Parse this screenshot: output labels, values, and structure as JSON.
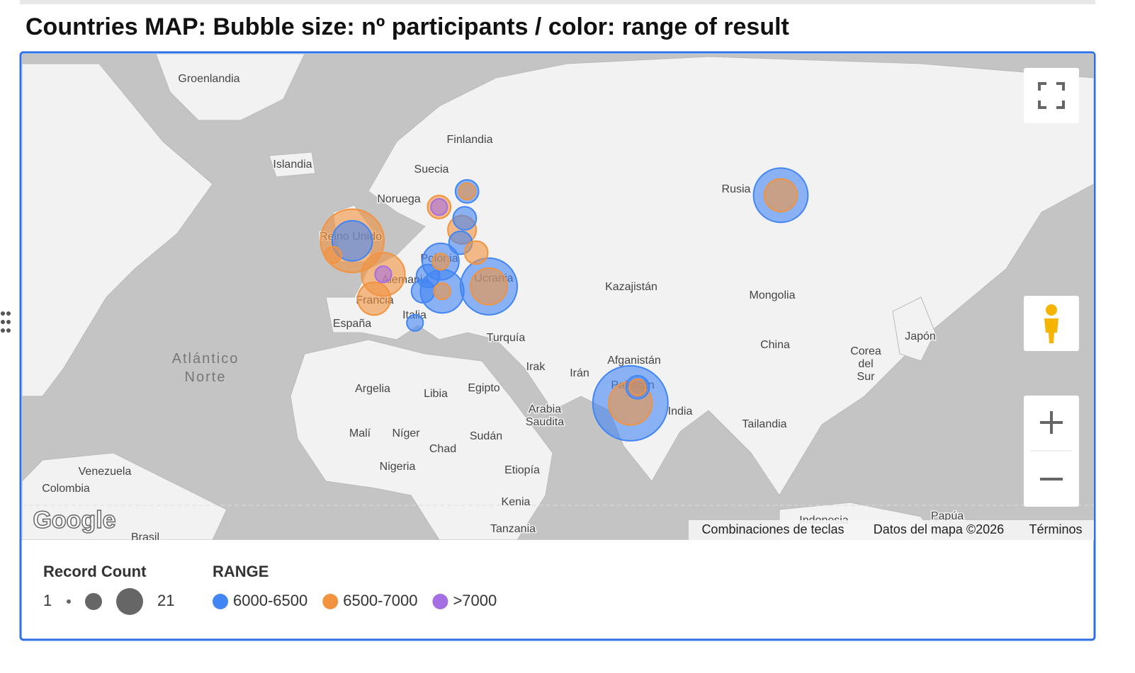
{
  "header": {
    "title": "Countries MAP: Bubble size: nº participants / color: range of result"
  },
  "map": {
    "labels": [
      "Groenlandia",
      "Islandia",
      "Finlandia",
      "Suecia",
      "Noruega",
      "Reino Unido",
      "Polonia",
      "Alemania",
      "Ucrania",
      "Francia",
      "Italia",
      "España",
      "Turquía",
      "Rusia",
      "Kazajistán",
      "Mongolia",
      "China",
      "Corea del Sur",
      "Japón",
      "Afganistán",
      "Irán",
      "Irak",
      "Pakistán",
      "India",
      "Tailandia",
      "Atlántico Norte",
      "Argelia",
      "Libia",
      "Egipto",
      "Arabia Saudita",
      "Malí",
      "Níger",
      "Chad",
      "Sudán",
      "Nigeria",
      "Etiopía",
      "Kenia",
      "Tanzania",
      "Venezuela",
      "Colombia",
      "Brasil",
      "Indonesia",
      "Papúa"
    ],
    "attribution": [
      "Combinaciones de teclas",
      "Datos del mapa ©2026",
      "Términos"
    ],
    "logo": "Google"
  },
  "legend": {
    "size_title": "Record Count",
    "size_range": [
      1,
      21
    ],
    "color_title": "RANGE",
    "ranges": [
      {
        "label": "6000-6500",
        "color": "#4285f4",
        "bubbles": [
          {
            "lon": -2,
            "lat": 53.0,
            "count": 6
          },
          {
            "lon": 70.7,
            "lat": 19.8,
            "count": 21
          },
          {
            "lon": 72.6,
            "lat": 23.7,
            "count": 2
          },
          {
            "lon": 110,
            "lat": 59.6,
            "count": 11
          },
          {
            "lon": 33.7,
            "lat": 45.2,
            "count": 12
          },
          {
            "lon": 21.1,
            "lat": 49.6,
            "count": 5
          },
          {
            "lon": 21.5,
            "lat": 44.3,
            "count": 7
          },
          {
            "lon": 16.5,
            "lat": 44.3,
            "count": 2
          },
          {
            "lon": 17.8,
            "lat": 47.1,
            "count": 2
          },
          {
            "lon": 14.4,
            "lat": 38.1,
            "count": 1
          },
          {
            "lon": 28,
            "lat": 60.1,
            "count": 2
          },
          {
            "lon": 27.4,
            "lat": 56.4,
            "count": 2
          },
          {
            "lon": 26.3,
            "lat": 52.7,
            "count": 2
          }
        ]
      },
      {
        "label": "6500-7000",
        "color": "#f29340",
        "bubbles": [
          {
            "lon": -2,
            "lat": 53.0,
            "count": 15
          },
          {
            "lon": -7,
            "lat": 50.7,
            "count": 1
          },
          {
            "lon": 6.1,
            "lat": 47.4,
            "count": 7
          },
          {
            "lon": 3.7,
            "lat": 42.9,
            "count": 4
          },
          {
            "lon": 20.7,
            "lat": 58.0,
            "count": 2
          },
          {
            "lon": 28,
            "lat": 60.1,
            "count": 1
          },
          {
            "lon": 26.7,
            "lat": 54.7,
            "count": 3
          },
          {
            "lon": 30.4,
            "lat": 51.1,
            "count": 2
          },
          {
            "lon": 21.1,
            "lat": 49.6,
            "count": 1
          },
          {
            "lon": 33.7,
            "lat": 45.2,
            "count": 5
          },
          {
            "lon": 21.5,
            "lat": 44.3,
            "count": 1
          },
          {
            "lon": 110,
            "lat": 59.6,
            "count": 4
          },
          {
            "lon": 70.7,
            "lat": 19.8,
            "count": 7
          },
          {
            "lon": 72.6,
            "lat": 23.7,
            "count": 1
          }
        ]
      },
      {
        "label": ">7000",
        "color": "#a66ee3",
        "bubbles": [
          {
            "lon": 6.1,
            "lat": 47.4,
            "count": 1
          },
          {
            "lon": 20.7,
            "lat": 58.0,
            "count": 1
          }
        ]
      }
    ]
  }
}
